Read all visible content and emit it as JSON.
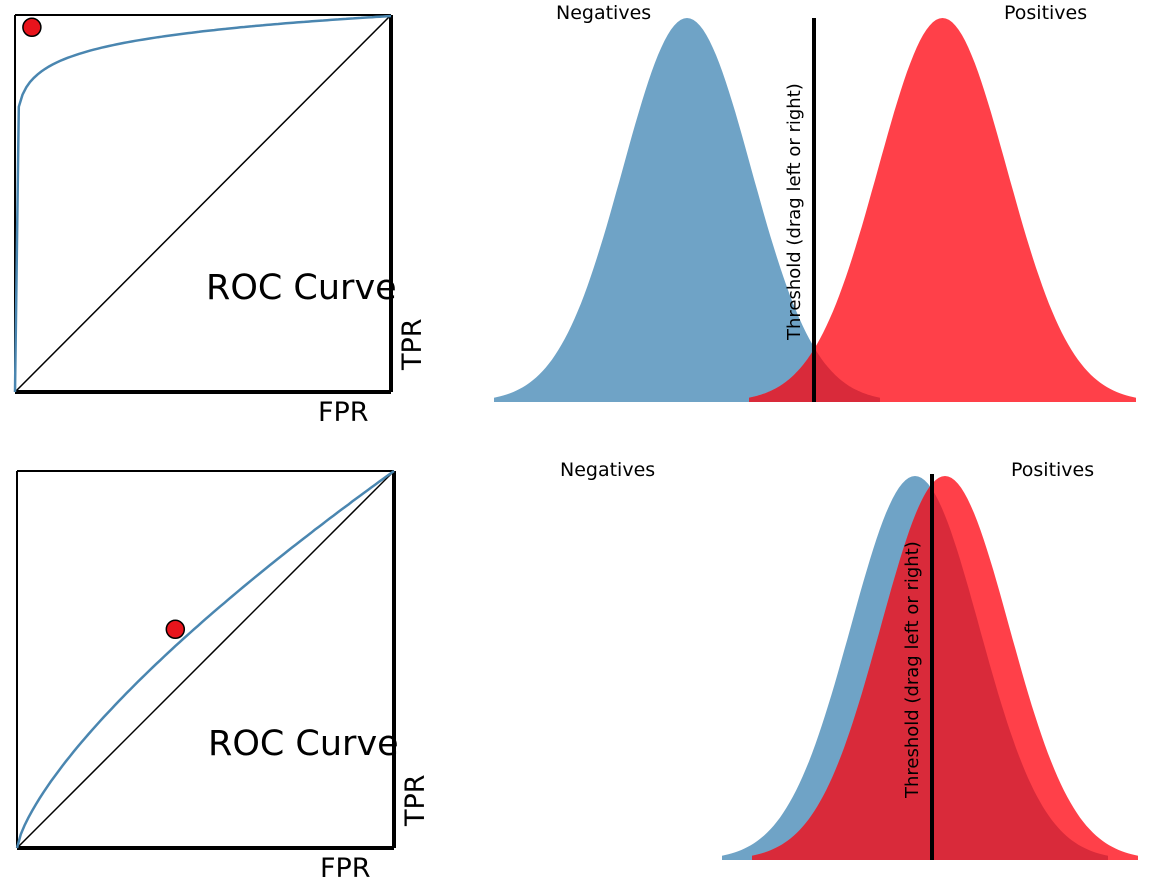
{
  "colors": {
    "negatives": "#6fa3c6",
    "positives": "#ff4049",
    "overlap": "#d92a3a",
    "roc_curve": "#4a86b0",
    "operating_point": "#e8141c",
    "axis": "#000000",
    "diagonal": "#000000",
    "threshold": "#000000"
  },
  "panels": [
    {
      "roc": {
        "title": "ROC Curve",
        "x_label": "FPR",
        "y_label": "TPR",
        "auc_shape": "strong",
        "operating_point": {
          "fpr": 0.045,
          "tpr": 0.97
        }
      },
      "distributions": {
        "negatives_label": "Negatives",
        "positives_label": "Positives",
        "negatives_mean": 0.3,
        "positives_mean": 0.7,
        "spread": 0.115,
        "threshold_position": 0.5,
        "threshold_label": "Threshold (drag left or right)"
      }
    },
    {
      "roc": {
        "title": "ROC Curve",
        "x_label": "FPR",
        "y_label": "TPR",
        "auc_shape": "weak",
        "operating_point": {
          "fpr": 0.42,
          "tpr": 0.58
        }
      },
      "distributions": {
        "negatives_label": "Negatives",
        "positives_label": "Positives",
        "negatives_mean": 0.45,
        "positives_mean": 0.53,
        "spread": 0.11,
        "threshold_position": 0.497,
        "threshold_label": "Threshold (drag left or right)"
      }
    }
  ]
}
